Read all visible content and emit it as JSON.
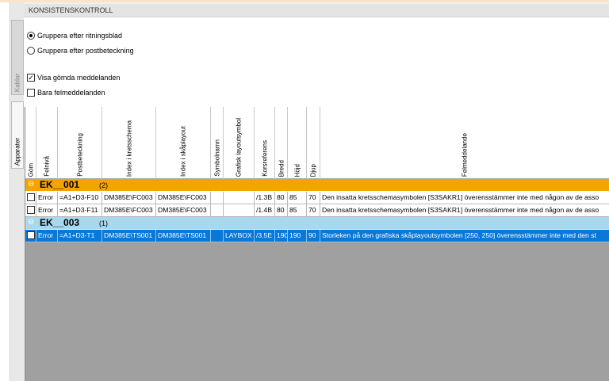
{
  "header": {
    "title": "KONSISTENSKONTROLL"
  },
  "tabs": [
    "Kablar",
    "Apparater"
  ],
  "options": {
    "radios": [
      {
        "label": "Gruppera efter ritningsblad",
        "selected": true
      },
      {
        "label": "Gruppera efter postbeteckning",
        "selected": false
      }
    ],
    "checkboxes": [
      {
        "label": "Visa gömda meddelanden",
        "checked": true
      },
      {
        "label": "Bara felmeddelanden",
        "checked": false
      }
    ]
  },
  "table": {
    "columns": [
      "Göm",
      "Felnivå",
      "Postbeteckning",
      "Index i kretsschema",
      "Index i skåplayout",
      "Symbolnamn",
      "Grafisk layoutsymbol",
      "Korsreferens",
      "Bredd",
      "Höjd",
      "Djup",
      "Felmeddelande"
    ],
    "groups": [
      {
        "name": "EK__001",
        "count": "(2)",
        "rows": [
          {
            "hidden": false,
            "level": "Error",
            "tag": "=A1+D3-F10",
            "circuit_index": "DM385E\\FC003",
            "cabinet_index": "DM385E\\FC003",
            "xref": "/1.3B",
            "width": 80,
            "height": 85,
            "depth": 70,
            "message": "Den insatta kretsschemasymbolen [S3SAKR1] överensstämmer inte med någon av de asso"
          },
          {
            "hidden": false,
            "level": "Error",
            "tag": "=A1+D3-F11",
            "circuit_index": "DM385E\\FC003",
            "cabinet_index": "DM385E\\FC003",
            "xref": "/1.4B",
            "width": 80,
            "height": 85,
            "depth": 70,
            "message": "Den insatta kretsschemasymbolen [S3SAKR1] överensstämmer inte med någon av de asso"
          }
        ]
      },
      {
        "name": "EK__003",
        "count": "(1)",
        "rows": [
          {
            "hidden": false,
            "selected": true,
            "level": "Error",
            "tag": "=A1+D3-T1",
            "circuit_index": "DM385E\\TS001",
            "cabinet_index": "DM385E\\TS001",
            "layout_symbol": "LAYBOX",
            "xref": "/3.5E",
            "width": 190,
            "height": 190,
            "depth": 90,
            "message": "Storleken på den grafiska skåplayoutsymbolen [250, 250] överensstämmer inte med den st"
          }
        ]
      }
    ]
  }
}
